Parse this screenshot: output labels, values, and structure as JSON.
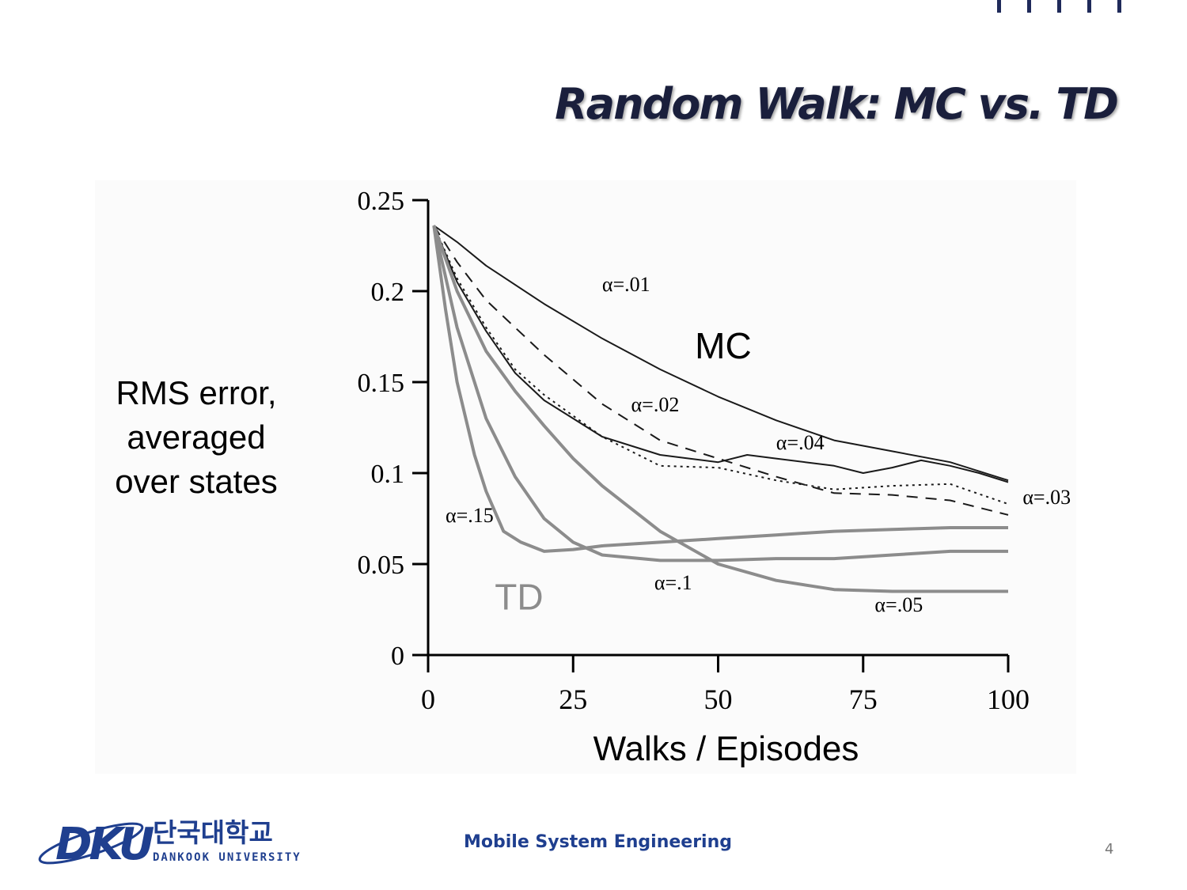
{
  "slide": {
    "title": "Random Walk: MC vs. TD",
    "footer": "Mobile System Engineering",
    "page_number": "4",
    "logo": {
      "letters": "DKU",
      "korean_name": "단국대학교",
      "english_name": "DANKOOK UNIVERSITY",
      "color": "#1f3f8f"
    }
  },
  "colors": {
    "title": "#1a1f3c",
    "mc_line": "#1a1a1a",
    "td_line": "#8c8c8c",
    "footer": "#1f3f8f"
  },
  "chart_data": {
    "type": "line",
    "ylabel": [
      "RMS error,",
      "averaged",
      "over states"
    ],
    "xlabel": "Walks / Episodes",
    "xlim": [
      0,
      100
    ],
    "ylim": [
      0,
      0.25
    ],
    "xticks": [
      "0",
      "25",
      "50",
      "75",
      "100"
    ],
    "yticks": [
      "0",
      "0.05",
      "0.1",
      "0.15",
      "0.2",
      "0.25"
    ],
    "annotations": {
      "mc": "MC",
      "td": "TD"
    },
    "series": [
      {
        "name": "α=.01",
        "method": "MC",
        "dash": "solid",
        "x": [
          1,
          5,
          10,
          20,
          30,
          40,
          50,
          60,
          70,
          80,
          90,
          100
        ],
        "y": [
          0.236,
          0.227,
          0.214,
          0.193,
          0.174,
          0.157,
          0.142,
          0.129,
          0.118,
          0.112,
          0.106,
          0.096
        ]
      },
      {
        "name": "α=.02",
        "method": "MC",
        "dash": "dashed",
        "x": [
          1,
          5,
          10,
          20,
          30,
          40,
          50,
          60,
          70,
          80,
          90,
          100
        ],
        "y": [
          0.236,
          0.216,
          0.195,
          0.165,
          0.138,
          0.118,
          0.108,
          0.098,
          0.089,
          0.088,
          0.085,
          0.077
        ]
      },
      {
        "name": "α=.03",
        "method": "MC",
        "dash": "dotted",
        "x": [
          1,
          5,
          10,
          15,
          20,
          30,
          40,
          50,
          60,
          70,
          80,
          90,
          100
        ],
        "y": [
          0.236,
          0.207,
          0.18,
          0.157,
          0.143,
          0.12,
          0.104,
          0.103,
          0.096,
          0.091,
          0.093,
          0.094,
          0.083
        ]
      },
      {
        "name": "α=.04",
        "method": "MC",
        "dash": "solid",
        "x": [
          1,
          5,
          10,
          15,
          20,
          25,
          30,
          40,
          45,
          50,
          55,
          60,
          65,
          70,
          75,
          80,
          85,
          90,
          95,
          100
        ],
        "y": [
          0.236,
          0.205,
          0.178,
          0.155,
          0.14,
          0.13,
          0.12,
          0.11,
          0.108,
          0.106,
          0.11,
          0.108,
          0.106,
          0.104,
          0.1,
          0.103,
          0.107,
          0.104,
          0.1,
          0.095
        ]
      },
      {
        "name": "α=.05",
        "method": "TD",
        "dash": "solid",
        "x": [
          1,
          5,
          10,
          15,
          20,
          25,
          30,
          40,
          50,
          60,
          70,
          80,
          90,
          100
        ],
        "y": [
          0.236,
          0.2,
          0.167,
          0.145,
          0.126,
          0.108,
          0.093,
          0.068,
          0.05,
          0.041,
          0.036,
          0.035,
          0.035,
          0.035
        ]
      },
      {
        "name": "α=.1",
        "method": "TD",
        "dash": "solid",
        "x": [
          1,
          5,
          10,
          15,
          20,
          25,
          30,
          40,
          50,
          60,
          70,
          80,
          90,
          100
        ],
        "y": [
          0.236,
          0.18,
          0.13,
          0.098,
          0.075,
          0.062,
          0.055,
          0.052,
          0.052,
          0.053,
          0.053,
          0.055,
          0.057,
          0.057
        ]
      },
      {
        "name": "α=.15",
        "method": "TD",
        "dash": "solid",
        "x": [
          1,
          3,
          5,
          8,
          10,
          13,
          16,
          20,
          25,
          30,
          40,
          50,
          60,
          70,
          80,
          90,
          100
        ],
        "y": [
          0.236,
          0.19,
          0.15,
          0.11,
          0.09,
          0.068,
          0.062,
          0.057,
          0.058,
          0.06,
          0.062,
          0.064,
          0.066,
          0.068,
          0.069,
          0.07,
          0.07
        ]
      }
    ]
  }
}
